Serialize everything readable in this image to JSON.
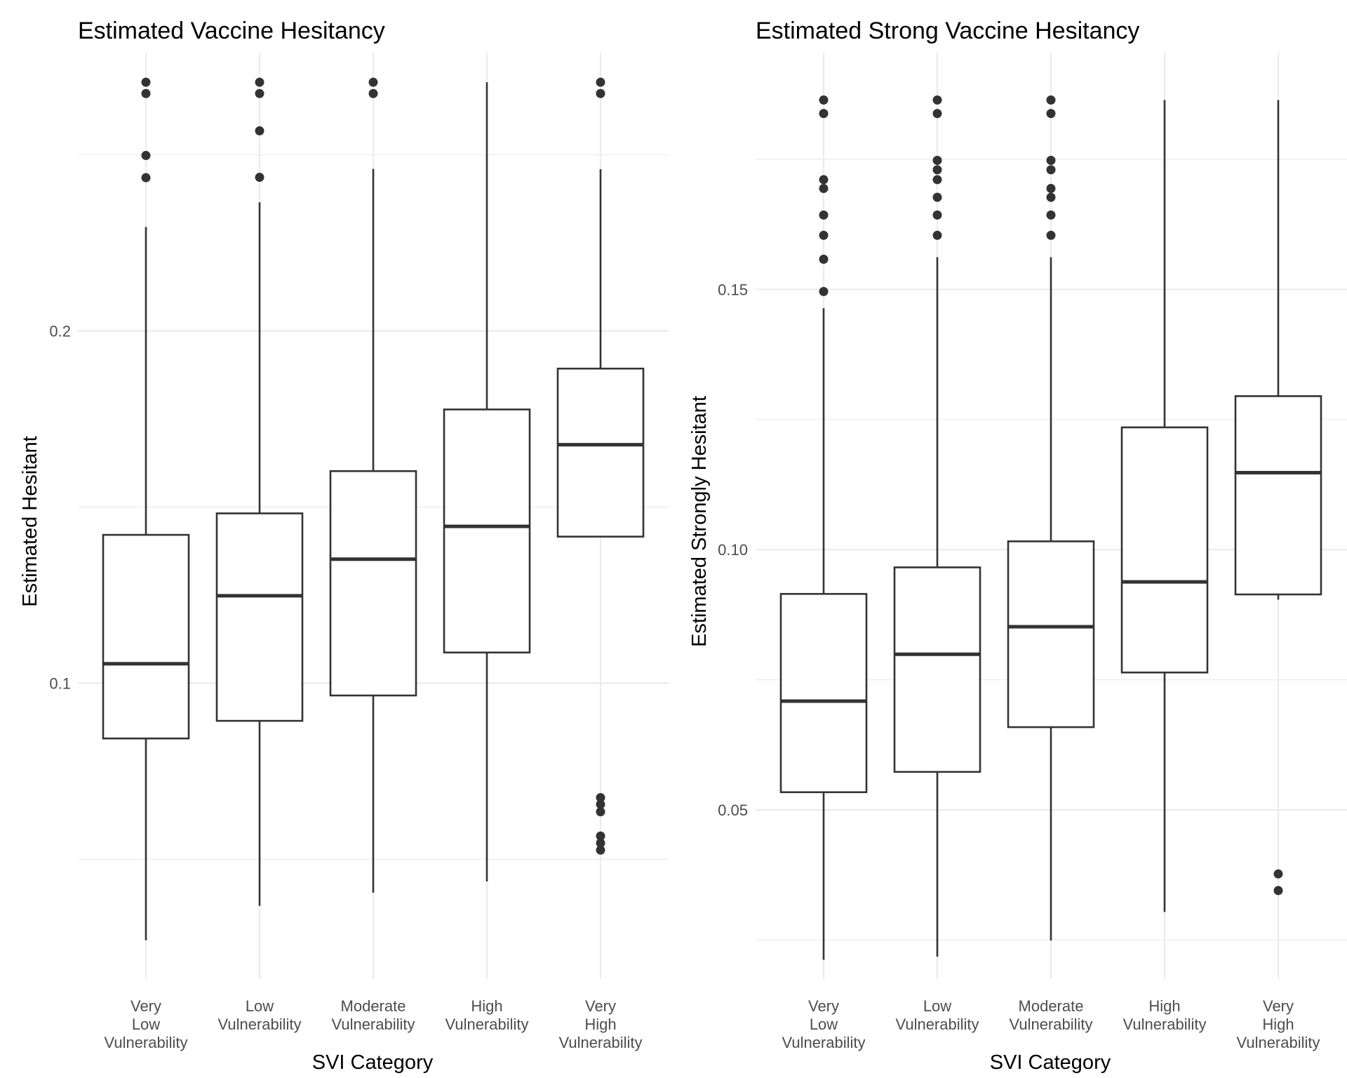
{
  "colors": {
    "background": "#ffffff",
    "grid": "#ebebeb",
    "box_stroke": "#333333",
    "tick_text": "#4d4d4d"
  },
  "chart_data": [
    {
      "type": "boxplot",
      "title": "Estimated Vaccine Hesitancy",
      "xlabel": "SVI Category",
      "ylabel": "Estimated Hesitant",
      "categories": [
        [
          "Very",
          "Low",
          "Vulnerability"
        ],
        [
          "Low",
          "Vulnerability"
        ],
        [
          "Moderate",
          "Vulnerability"
        ],
        [
          "High",
          "Vulnerability"
        ],
        [
          "Very",
          "High",
          "Vulnerability"
        ]
      ],
      "ylim": [
        0.016,
        0.279
      ],
      "y_ticks": [
        0.1,
        0.2
      ],
      "y_tick_labels": [
        "0.1",
        "0.2"
      ],
      "y_minor_grid": [
        0.05,
        0.15,
        0.25
      ],
      "grid": true,
      "boxes": [
        {
          "lower_whisker": 0.027,
          "q1": 0.0843,
          "median": 0.1055,
          "q3": 0.1421,
          "upper_whisker": 0.2295,
          "outliers": [
            0.2435,
            0.2498,
            0.2674,
            0.2706
          ]
        },
        {
          "lower_whisker": 0.0368,
          "q1": 0.0893,
          "median": 0.1248,
          "q3": 0.1482,
          "upper_whisker": 0.2365,
          "outliers": [
            0.2436,
            0.2568,
            0.2674,
            0.2706
          ]
        },
        {
          "lower_whisker": 0.0405,
          "q1": 0.0965,
          "median": 0.1352,
          "q3": 0.1602,
          "upper_whisker": 0.246,
          "outliers": [
            0.2674,
            0.2706
          ]
        },
        {
          "lower_whisker": 0.0437,
          "q1": 0.1087,
          "median": 0.1445,
          "q3": 0.1777,
          "upper_whisker": 0.2706,
          "outliers": []
        },
        {
          "lower_whisker": 0.1416,
          "q1": 0.1416,
          "median": 0.1677,
          "q3": 0.1893,
          "upper_whisker": 0.2459,
          "outliers": [
            0.0526,
            0.0546,
            0.0566,
            0.0635,
            0.0656,
            0.0675,
            0.2674,
            0.2706
          ]
        }
      ]
    },
    {
      "type": "boxplot",
      "title": "Estimated Strong Vaccine Hesitancy",
      "xlabel": "SVI Category",
      "ylabel": "Estimated Strongly Hesitant",
      "categories": [
        [
          "Very",
          "Low",
          "Vulnerability"
        ],
        [
          "Low",
          "Vulnerability"
        ],
        [
          "Moderate",
          "Vulnerability"
        ],
        [
          "High",
          "Vulnerability"
        ],
        [
          "Very",
          "High",
          "Vulnerability"
        ]
      ],
      "ylim": [
        0.0175,
        0.1955
      ],
      "y_ticks": [
        0.05,
        0.1,
        0.15
      ],
      "y_tick_labels": [
        "0.05",
        "0.10",
        "0.15"
      ],
      "y_minor_grid": [
        0.025,
        0.075,
        0.125,
        0.175
      ],
      "grid": true,
      "boxes": [
        {
          "lower_whisker": 0.0212,
          "q1": 0.0534,
          "median": 0.0709,
          "q3": 0.0915,
          "upper_whisker": 0.1464,
          "outliers": [
            0.1496,
            0.1558,
            0.1604,
            0.1643,
            0.1694,
            0.1711,
            0.1838,
            0.1864
          ]
        },
        {
          "lower_whisker": 0.0218,
          "q1": 0.0573,
          "median": 0.0799,
          "q3": 0.0966,
          "upper_whisker": 0.1562,
          "outliers": [
            0.1604,
            0.1643,
            0.1677,
            0.1711,
            0.173,
            0.1748,
            0.1838,
            0.1864
          ]
        },
        {
          "lower_whisker": 0.0249,
          "q1": 0.0659,
          "median": 0.0852,
          "q3": 0.1016,
          "upper_whisker": 0.1562,
          "outliers": [
            0.1604,
            0.1643,
            0.1677,
            0.1694,
            0.173,
            0.1748,
            0.1838,
            0.1864
          ]
        },
        {
          "lower_whisker": 0.0304,
          "q1": 0.0764,
          "median": 0.0938,
          "q3": 0.1235,
          "upper_whisker": 0.1864,
          "outliers": []
        },
        {
          "lower_whisker": 0.0904,
          "q1": 0.0914,
          "median": 0.1148,
          "q3": 0.1295,
          "upper_whisker": 0.1864,
          "outliers": [
            0.0345,
            0.0377
          ]
        }
      ]
    }
  ]
}
